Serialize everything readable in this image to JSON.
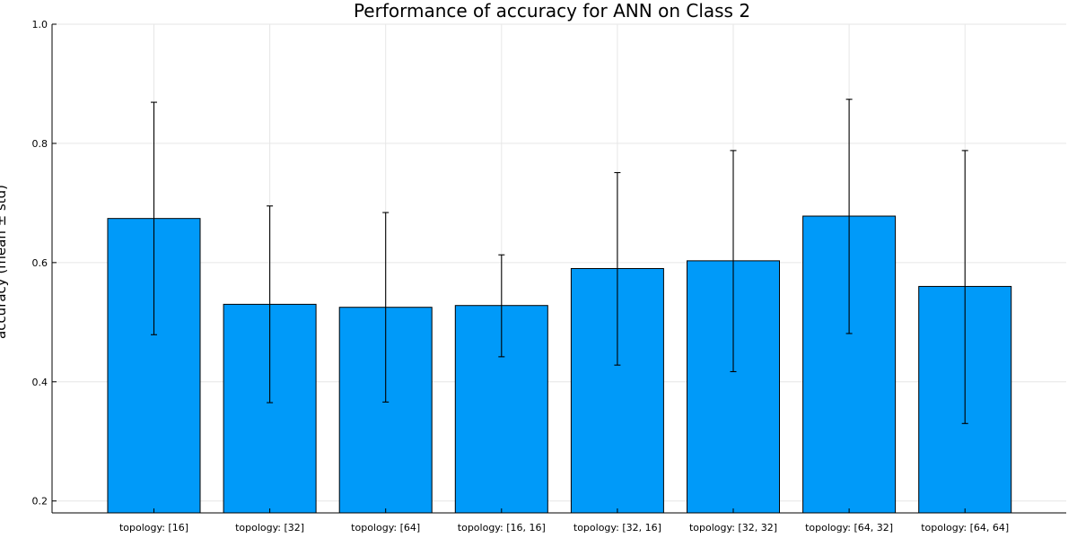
{
  "chart_data": {
    "type": "bar",
    "title": "Performance of accuracy for ANN on Class 2",
    "ylabel": "accuracy (mean ± std)",
    "xlabel": "",
    "categories": [
      "topology: [16]",
      "topology: [32]",
      "topology: [64]",
      "topology: [16, 16]",
      "topology: [32, 16]",
      "topology: [32, 32]",
      "topology: [64, 32]",
      "topology: [64, 64]"
    ],
    "values": [
      0.674,
      0.53,
      0.525,
      0.528,
      0.59,
      0.603,
      0.678,
      0.56
    ],
    "error_low": [
      0.479,
      0.365,
      0.366,
      0.442,
      0.428,
      0.417,
      0.481,
      0.33
    ],
    "error_high": [
      0.869,
      0.695,
      0.684,
      0.613,
      0.751,
      0.788,
      0.874,
      0.788
    ],
    "ylim": [
      0.18,
      1.0
    ],
    "yticks": [
      "0.2",
      "0.4",
      "0.6",
      "0.8",
      "1.0"
    ],
    "ytick_values": [
      0.2,
      0.4,
      0.6,
      0.8,
      1.0
    ],
    "grid": true,
    "legend": "none",
    "bar_color": "#009af9"
  }
}
